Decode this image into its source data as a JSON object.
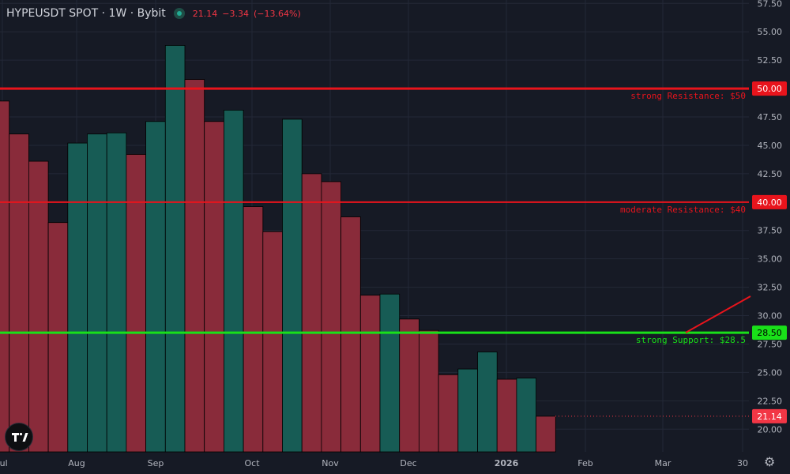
{
  "header": {
    "symbol": "HYPEUSDT SPOT · 1W · Bybit",
    "last": "21.14",
    "change": "−3.34",
    "change_pct": "(−13.64%)"
  },
  "colors": {
    "background": "#161a25",
    "grid": "#232837",
    "up": "#175c55",
    "down": "#892b3a",
    "resistance": "#e8141c",
    "support": "#19e019",
    "axis_text": "#b2b5be"
  },
  "icons": {
    "logo": "tradingview-logo-icon",
    "settings": "gear-icon"
  },
  "chart_data": {
    "type": "bar",
    "title": "HYPEUSDT SPOT · 1W · Bybit",
    "ylim": [
      18.0,
      57.8
    ],
    "y_ticks": [
      "57.50",
      "55.00",
      "52.50",
      "50.00",
      "47.50",
      "45.00",
      "42.50",
      "40.00",
      "37.50",
      "35.00",
      "32.50",
      "30.00",
      "27.50",
      "25.00",
      "22.50",
      "20.00"
    ],
    "x_ticks": [
      "Jul",
      "Aug",
      "Sep",
      "Oct",
      "Nov",
      "Dec",
      "2026",
      "Feb",
      "Mar",
      "30"
    ],
    "grid": true,
    "series": [
      {
        "values": [
          48.9,
          46.0,
          43.6,
          38.2,
          45.2,
          46.0,
          46.1,
          44.2,
          47.1,
          53.8,
          50.8,
          47.1,
          48.1,
          39.6,
          37.4,
          47.3,
          42.5,
          41.8,
          38.7,
          31.8,
          31.9,
          29.7,
          28.7,
          24.8,
          25.3,
          26.8,
          24.4,
          24.5,
          21.14
        ],
        "directions": [
          "down",
          "down",
          "down",
          "down",
          "up",
          "up",
          "up",
          "down",
          "up",
          "up",
          "down",
          "down",
          "up",
          "down",
          "down",
          "up",
          "down",
          "down",
          "down",
          "down",
          "up",
          "down",
          "down",
          "down",
          "up",
          "up",
          "down",
          "up",
          "down"
        ]
      }
    ],
    "levels": [
      {
        "price": 50.0,
        "price_label": "50.00",
        "label": "strong Resistance: $50",
        "kind": "resistance"
      },
      {
        "price": 40.0,
        "price_label": "40.00",
        "label": "moderate Resistance: $40",
        "kind": "resistance"
      },
      {
        "price": 28.5,
        "price_label": "28.50",
        "label": "strong Support: $28.5",
        "kind": "support"
      }
    ],
    "last_price": {
      "value": 21.14,
      "label": "21.14"
    }
  }
}
